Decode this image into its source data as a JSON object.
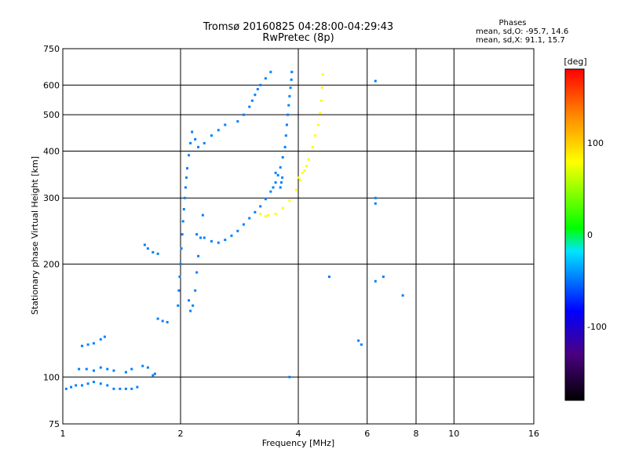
{
  "chart_data": {
    "type": "scatter",
    "title": "Tromsø 20160825 04:28:00-04:29:43",
    "subtitle": "RwPretec (8p)",
    "xlabel": "Frequency [MHz]",
    "ylabel": "Stationary phase Virtual Height [km]",
    "x_scale": "log",
    "y_scale": "log",
    "xlim": [
      1,
      16
    ],
    "ylim": [
      75,
      750
    ],
    "x_ticks": [
      1,
      2,
      4,
      6,
      8,
      10,
      16
    ],
    "x_tick_labels": [
      "1",
      "2",
      "4",
      "6",
      "8",
      "10",
      "16"
    ],
    "y_ticks": [
      75,
      100,
      200,
      300,
      400,
      500,
      600,
      750
    ],
    "y_tick_labels": [
      "75",
      "100",
      "200",
      "300",
      "400",
      "500",
      "600",
      "750"
    ],
    "grid": true,
    "stats": {
      "heading": "Phases",
      "line_o": "mean, sd,O: -95.7, 14.6",
      "line_x": "mean, sd,X:  91.1, 15.7"
    },
    "colorbar": {
      "label": "[deg]",
      "range": [
        -180,
        180
      ],
      "ticks": [
        100,
        0,
        -100
      ],
      "tick_labels": [
        "100",
        "0",
        "-100"
      ]
    },
    "series": [
      {
        "mode": "O",
        "phase_deg": -100,
        "points": [
          [
            1.02,
            93
          ],
          [
            1.05,
            94
          ],
          [
            1.08,
            95
          ],
          [
            1.12,
            95
          ],
          [
            1.16,
            96
          ],
          [
            1.2,
            97
          ],
          [
            1.25,
            96
          ],
          [
            1.3,
            95
          ],
          [
            1.35,
            93
          ],
          [
            1.4,
            93
          ],
          [
            1.45,
            93
          ],
          [
            1.5,
            93
          ],
          [
            1.55,
            94
          ],
          [
            1.1,
            105
          ],
          [
            1.15,
            105
          ],
          [
            1.2,
            104
          ],
          [
            1.25,
            106
          ],
          [
            1.3,
            105
          ],
          [
            1.35,
            104
          ],
          [
            1.45,
            103
          ],
          [
            1.5,
            105
          ],
          [
            1.12,
            121
          ],
          [
            1.16,
            122
          ],
          [
            1.2,
            123
          ],
          [
            1.25,
            126
          ],
          [
            1.28,
            128
          ],
          [
            1.6,
            107
          ],
          [
            1.65,
            106
          ],
          [
            1.7,
            101
          ],
          [
            1.72,
            102
          ],
          [
            1.62,
            225
          ],
          [
            1.65,
            220
          ],
          [
            1.7,
            215
          ],
          [
            1.75,
            213
          ],
          [
            1.75,
            143
          ],
          [
            1.8,
            141
          ],
          [
            1.85,
            140
          ],
          [
            1.97,
            155
          ],
          [
            1.98,
            170
          ],
          [
            1.99,
            185
          ],
          [
            2.0,
            200
          ],
          [
            2.01,
            220
          ],
          [
            2.02,
            240
          ],
          [
            2.03,
            260
          ],
          [
            2.04,
            280
          ],
          [
            2.05,
            300
          ],
          [
            2.06,
            320
          ],
          [
            2.07,
            340
          ],
          [
            2.08,
            360
          ],
          [
            2.1,
            390
          ],
          [
            2.12,
            420
          ],
          [
            2.14,
            450
          ],
          [
            2.18,
            430
          ],
          [
            2.22,
            410
          ],
          [
            2.3,
            420
          ],
          [
            2.4,
            440
          ],
          [
            2.5,
            455
          ],
          [
            2.6,
            470
          ],
          [
            2.1,
            160
          ],
          [
            2.12,
            150
          ],
          [
            2.15,
            155
          ],
          [
            2.18,
            170
          ],
          [
            2.2,
            190
          ],
          [
            2.22,
            210
          ],
          [
            2.25,
            235
          ],
          [
            2.28,
            270
          ],
          [
            2.2,
            240
          ],
          [
            2.3,
            235
          ],
          [
            2.4,
            230
          ],
          [
            2.5,
            228
          ],
          [
            2.6,
            232
          ],
          [
            2.7,
            238
          ],
          [
            2.8,
            245
          ],
          [
            2.9,
            255
          ],
          [
            3.0,
            265
          ],
          [
            3.1,
            275
          ],
          [
            3.2,
            285
          ],
          [
            3.3,
            298
          ],
          [
            3.4,
            312
          ],
          [
            3.5,
            330
          ],
          [
            3.55,
            345
          ],
          [
            3.6,
            362
          ],
          [
            3.65,
            385
          ],
          [
            3.7,
            410
          ],
          [
            3.72,
            440
          ],
          [
            3.74,
            470
          ],
          [
            3.76,
            500
          ],
          [
            3.78,
            530
          ],
          [
            3.8,
            560
          ],
          [
            3.82,
            590
          ],
          [
            3.84,
            620
          ],
          [
            3.85,
            650
          ],
          [
            2.8,
            480
          ],
          [
            2.9,
            500
          ],
          [
            3.0,
            525
          ],
          [
            3.05,
            545
          ],
          [
            3.1,
            565
          ],
          [
            3.15,
            585
          ],
          [
            3.2,
            600
          ],
          [
            3.3,
            625
          ],
          [
            3.4,
            650
          ],
          [
            3.6,
            320
          ],
          [
            3.62,
            330
          ],
          [
            3.64,
            340
          ],
          [
            3.5,
            350
          ],
          [
            3.45,
            320
          ],
          [
            4.8,
            185
          ],
          [
            5.7,
            125
          ],
          [
            5.8,
            122
          ],
          [
            6.3,
            615
          ],
          [
            6.3,
            300
          ],
          [
            6.3,
            290
          ],
          [
            6.3,
            180
          ],
          [
            6.6,
            185
          ],
          [
            7.4,
            165
          ],
          [
            3.8,
            100
          ]
        ]
      },
      {
        "mode": "X",
        "phase_deg": 100,
        "points": [
          [
            3.35,
            270
          ],
          [
            3.5,
            272
          ],
          [
            3.65,
            282
          ],
          [
            3.8,
            295
          ],
          [
            3.95,
            315
          ],
          [
            4.05,
            335
          ],
          [
            4.15,
            355
          ],
          [
            4.25,
            380
          ],
          [
            4.35,
            410
          ],
          [
            4.42,
            440
          ],
          [
            4.5,
            470
          ],
          [
            4.55,
            505
          ],
          [
            4.58,
            545
          ],
          [
            4.6,
            590
          ],
          [
            4.62,
            640
          ],
          [
            3.2,
            272
          ],
          [
            3.3,
            268
          ],
          [
            4.0,
            340
          ],
          [
            4.1,
            350
          ],
          [
            4.2,
            365
          ]
        ]
      }
    ]
  }
}
